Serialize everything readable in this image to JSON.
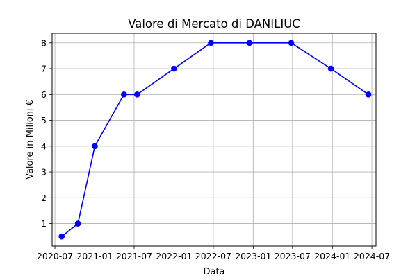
{
  "chart_data": {
    "type": "line",
    "title": "Valore di Mercato di DANILIUC",
    "xlabel": "Data",
    "ylabel": "Valore in Milioni €",
    "x_axis_type": "date",
    "xlim": [
      "2020-06-18",
      "2024-07-20"
    ],
    "ylim": [
      0.13,
      8.37
    ],
    "x_ticks": [
      "2020-07-01",
      "2021-01-01",
      "2021-07-01",
      "2022-01-01",
      "2022-07-01",
      "2023-01-01",
      "2023-07-01",
      "2024-01-01",
      "2024-07-01"
    ],
    "x_tick_labels": [
      "2020-07",
      "2021-01",
      "2021-07",
      "2022-01",
      "2022-07",
      "2023-01",
      "2023-07",
      "2024-01",
      "2024-07"
    ],
    "y_ticks": [
      1,
      2,
      3,
      4,
      5,
      6,
      7,
      8
    ],
    "y_tick_labels": [
      "1",
      "2",
      "3",
      "4",
      "5",
      "6",
      "7",
      "8"
    ],
    "grid": true,
    "series": [
      {
        "color": "#0000ff",
        "marker": "circle",
        "x": [
          "2020-08-01",
          "2020-10-15",
          "2021-01-01",
          "2021-05-15",
          "2021-07-15",
          "2022-01-01",
          "2022-06-20",
          "2022-12-15",
          "2023-06-25",
          "2023-12-25",
          "2024-06-15"
        ],
        "y": [
          0.5,
          1,
          4,
          6,
          6,
          7,
          8,
          8,
          8,
          7,
          6
        ]
      }
    ]
  }
}
